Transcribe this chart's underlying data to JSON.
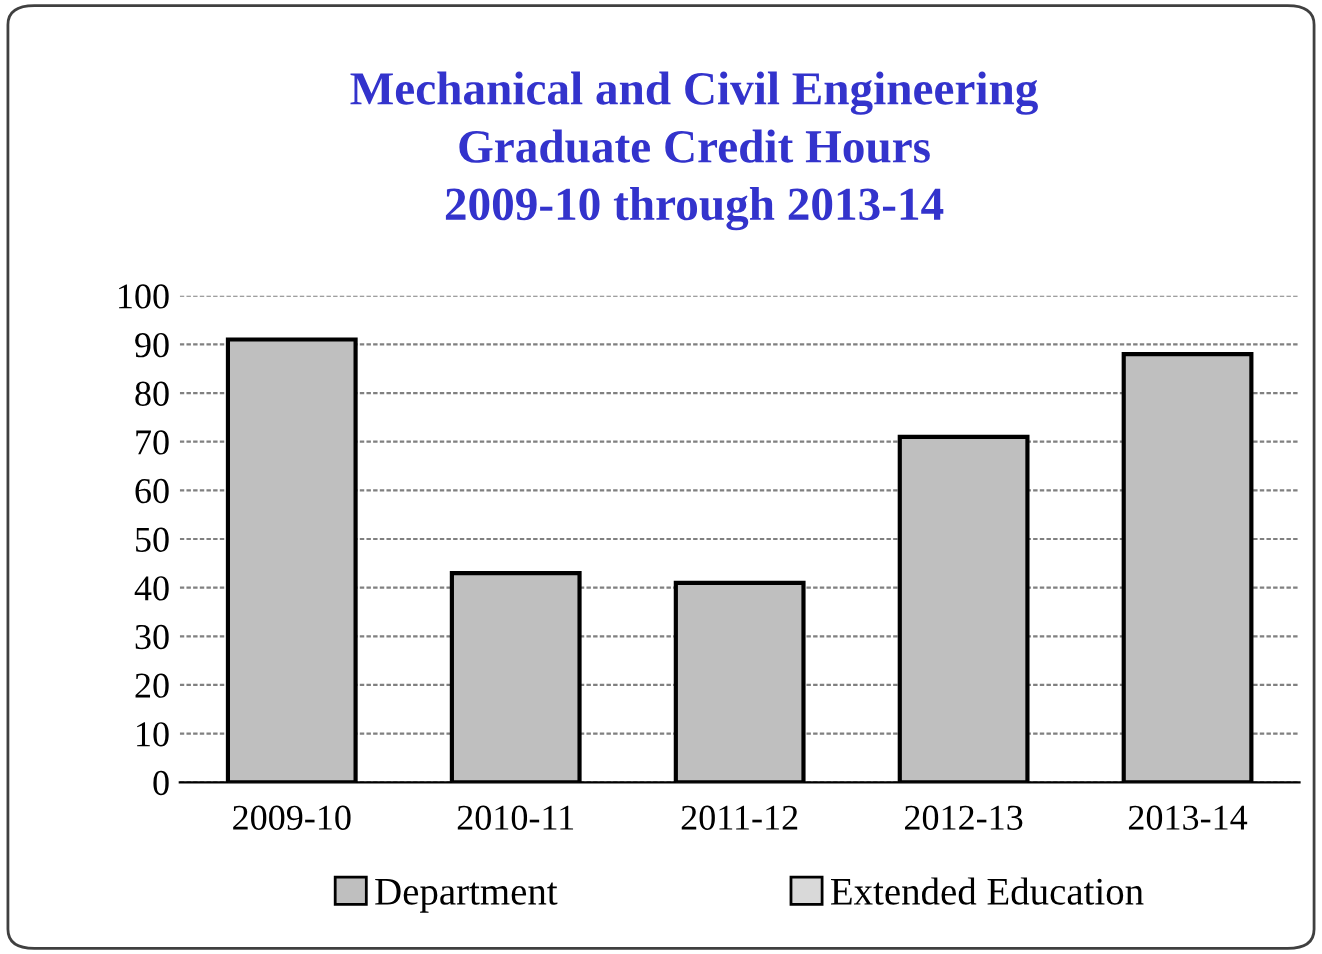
{
  "chart_data": {
    "type": "bar",
    "title": "Mechanical and Civil Engineering\nGraduate Credit Hours\n2009-10 through 2013-14",
    "categories": [
      "2009-10",
      "2010-11",
      "2011-12",
      "2012-13",
      "2013-14"
    ],
    "series": [
      {
        "name": "Department",
        "color": "#bfbfbf",
        "values": [
          91,
          43,
          41,
          71,
          88
        ]
      },
      {
        "name": "Extended Education",
        "color": "#d9d9d9",
        "values": [
          null,
          null,
          null,
          null,
          null
        ]
      }
    ],
    "ylim": [
      0,
      100
    ],
    "yticks": [
      0,
      10,
      20,
      30,
      40,
      50,
      60,
      70,
      80,
      90,
      100
    ],
    "grid": "y",
    "legend": "bottom"
  }
}
